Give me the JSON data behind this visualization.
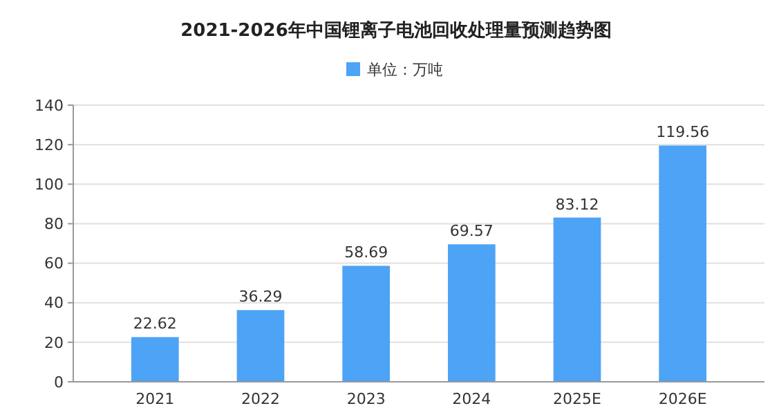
{
  "chart_data": {
    "type": "bar",
    "title": "2021-2026年中国锂离子电池回收处理量预测趋势图",
    "categories": [
      "2021",
      "2022",
      "2023",
      "2024",
      "2025E",
      "2026E"
    ],
    "series": [
      {
        "name": "单位：万吨",
        "color": "#4da3f5",
        "values": [
          22.62,
          36.29,
          58.69,
          69.57,
          83.12,
          119.56
        ]
      }
    ],
    "ylim": [
      0,
      140
    ],
    "yticks": [
      0,
      20,
      40,
      60,
      80,
      100,
      120,
      140
    ],
    "grid": "y",
    "legend": "top",
    "data_labels": true
  }
}
